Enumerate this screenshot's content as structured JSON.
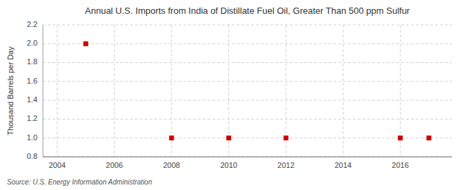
{
  "chart_data": {
    "type": "scatter",
    "title": "Annual U.S. Imports from India of Distillate Fuel Oil, Greater Than 500 ppm Sulfur",
    "ylabel": "Thousand Barrels per Day",
    "annotations": [
      "Source: U.S. Energy Information Administration"
    ],
    "x": [
      2005,
      2008,
      2010,
      2012,
      2016,
      2017
    ],
    "values": [
      2.0,
      1.0,
      1.0,
      1.0,
      1.0,
      1.0
    ],
    "color": "#cc0000",
    "marker": "square",
    "xlim": [
      2003.5,
      2017.8
    ],
    "xticks": [
      2004,
      2006,
      2008,
      2010,
      2012,
      2014,
      2016
    ],
    "ylim": [
      0.8,
      2.2
    ],
    "yticks": [
      0.8,
      {
        "value": 1.0,
        "label": "1.0"
      },
      1.2,
      1.4,
      1.6,
      1.8,
      {
        "value": 2.0,
        "label": "2.0"
      },
      2.2
    ],
    "grid": true
  }
}
